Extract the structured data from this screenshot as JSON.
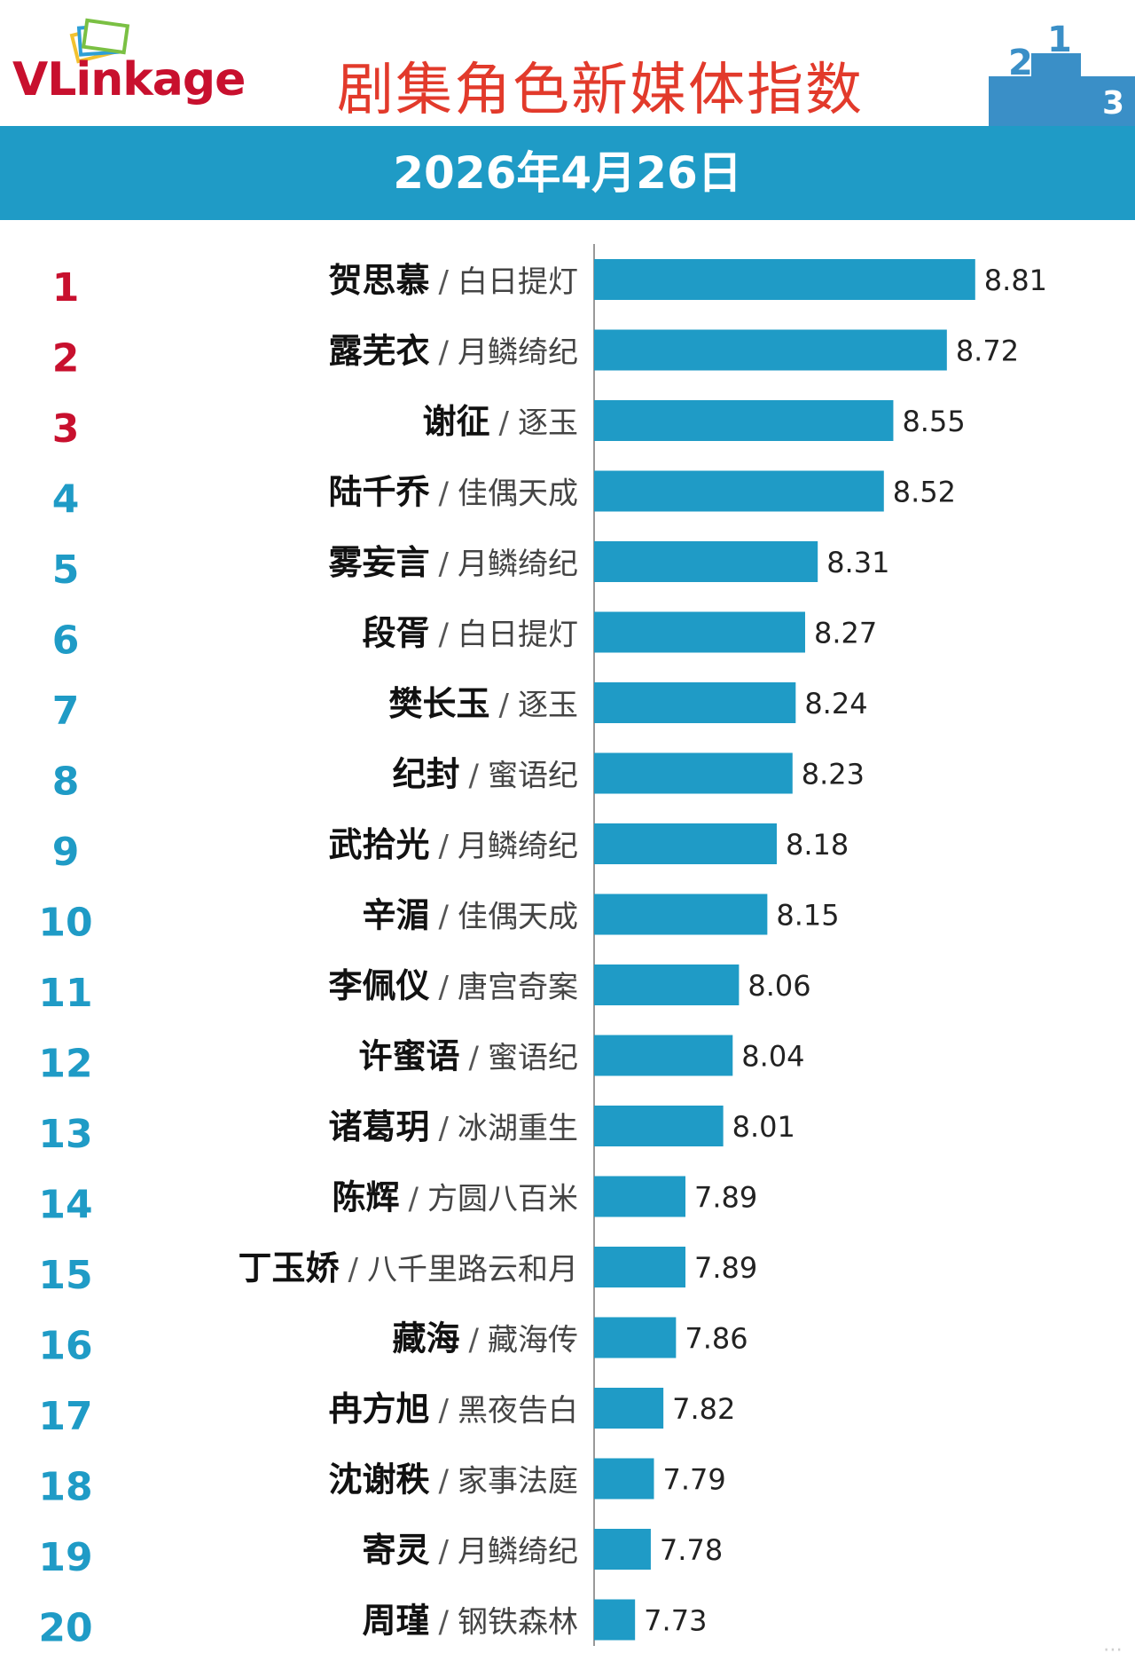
{
  "header": {
    "logo_text": "VLinkage",
    "title": "剧集角色新媒体指数",
    "date": "2026年4月26日",
    "podium_icon": "podium-icon"
  },
  "colors": {
    "bar": "#1f9bc6",
    "rank_top": "#c8102e",
    "rank_other": "#1f9bc6",
    "date_bar": "#1f9bc6",
    "title": "#e23a2b"
  },
  "chart_data": {
    "type": "bar",
    "orientation": "horizontal",
    "title": "剧集角色新媒体指数",
    "xlabel": "",
    "ylabel": "",
    "xlim": [
      7.6,
      8.85
    ],
    "grid": false,
    "categories": [
      {
        "rank": "1",
        "name": "贺思慕",
        "drama": "白日提灯"
      },
      {
        "rank": "2",
        "name": "露芜衣",
        "drama": "月鳞绮纪"
      },
      {
        "rank": "3",
        "name": "谢征",
        "drama": "逐玉"
      },
      {
        "rank": "4",
        "name": "陆千乔",
        "drama": "佳偶天成"
      },
      {
        "rank": "5",
        "name": "雾妄言",
        "drama": "月鳞绮纪"
      },
      {
        "rank": "6",
        "name": "段胥",
        "drama": "白日提灯"
      },
      {
        "rank": "7",
        "name": "樊长玉",
        "drama": "逐玉"
      },
      {
        "rank": "8",
        "name": "纪封",
        "drama": "蜜语纪"
      },
      {
        "rank": "9",
        "name": "武拾光",
        "drama": "月鳞绮纪"
      },
      {
        "rank": "10",
        "name": "辛湄",
        "drama": "佳偶天成"
      },
      {
        "rank": "11",
        "name": "李佩仪",
        "drama": "唐宫奇案"
      },
      {
        "rank": "12",
        "name": "许蜜语",
        "drama": "蜜语纪"
      },
      {
        "rank": "13",
        "name": "诸葛玥",
        "drama": "冰湖重生"
      },
      {
        "rank": "14",
        "name": "陈辉",
        "drama": "方圆八百米"
      },
      {
        "rank": "15",
        "name": "丁玉娇",
        "drama": "八千里路云和月"
      },
      {
        "rank": "16",
        "name": "藏海",
        "drama": "藏海传"
      },
      {
        "rank": "17",
        "name": "冉方旭",
        "drama": "黑夜告白"
      },
      {
        "rank": "18",
        "name": "沈谢秩",
        "drama": "家事法庭"
      },
      {
        "rank": "19",
        "name": "寄灵",
        "drama": "月鳞绮纪"
      },
      {
        "rank": "20",
        "name": "周瑾",
        "drama": "钢铁森林"
      }
    ],
    "values": [
      8.81,
      8.72,
      8.55,
      8.52,
      8.31,
      8.27,
      8.24,
      8.23,
      8.18,
      8.15,
      8.06,
      8.04,
      8.01,
      7.89,
      7.89,
      7.86,
      7.82,
      7.79,
      7.78,
      7.73
    ],
    "value_labels": [
      "8.81",
      "8.72",
      "8.55",
      "8.52",
      "8.31",
      "8.27",
      "8.24",
      "8.23",
      "8.18",
      "8.15",
      "8.06",
      "8.04",
      "8.01",
      "7.89",
      "7.89",
      "7.86",
      "7.82",
      "7.79",
      "7.78",
      "7.73"
    ],
    "separator": "/"
  }
}
